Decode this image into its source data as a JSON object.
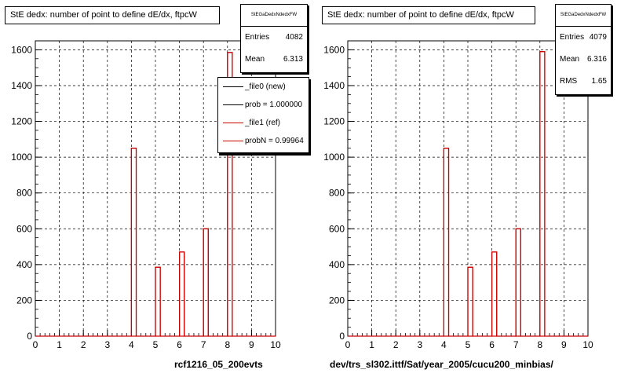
{
  "chart_data": [
    {
      "type": "bar",
      "title": "StE dedx: number of point to define dE/dx, ftpcW",
      "xlim": [
        0,
        10
      ],
      "ylim": [
        0,
        1650
      ],
      "x_ticks": [
        0,
        1,
        2,
        3,
        4,
        5,
        6,
        7,
        8,
        9,
        10
      ],
      "y_ticks": [
        0,
        200,
        400,
        600,
        800,
        1000,
        1200,
        1400,
        1600
      ],
      "bars": [
        {
          "x_low": 4.0,
          "x_high": 4.2,
          "value": 1050
        },
        {
          "x_low": 5.0,
          "x_high": 5.2,
          "value": 385
        },
        {
          "x_low": 6.0,
          "x_high": 6.2,
          "value": 470
        },
        {
          "x_low": 7.0,
          "x_high": 7.2,
          "value": 600
        },
        {
          "x_low": 8.0,
          "x_high": 8.2,
          "value": 1585
        }
      ],
      "series": [
        {
          "name": "_file0 (new)",
          "color": "#000000"
        },
        {
          "name": "_file1 (ref)",
          "color": "#cc0000"
        }
      ],
      "grid": true,
      "stats": {
        "name": "StEGaDedxNdedxFW",
        "entries": "4082",
        "mean": "6.313"
      },
      "legend_entries": [
        "_file0 (new)",
        "prob = 1.000000",
        "_file1 (ref)",
        "probN = 0.99964"
      ],
      "legend_position": "top-right",
      "subtitle": "rcf1216_05_200evts"
    },
    {
      "type": "bar",
      "title": "StE dedx: number of point to define dE/dx, ftpcW",
      "xlim": [
        0,
        10
      ],
      "ylim": [
        0,
        1650
      ],
      "x_ticks": [
        0,
        1,
        2,
        3,
        4,
        5,
        6,
        7,
        8,
        9,
        10
      ],
      "y_ticks": [
        0,
        200,
        400,
        600,
        800,
        1000,
        1200,
        1400,
        1600
      ],
      "bars": [
        {
          "x_low": 4.0,
          "x_high": 4.2,
          "value": 1050
        },
        {
          "x_low": 5.0,
          "x_high": 5.2,
          "value": 385
        },
        {
          "x_low": 6.0,
          "x_high": 6.2,
          "value": 470
        },
        {
          "x_low": 7.0,
          "x_high": 7.2,
          "value": 600
        },
        {
          "x_low": 8.0,
          "x_high": 8.2,
          "value": 1590
        }
      ],
      "series": [
        {
          "color": "#cc0000"
        }
      ],
      "grid": true,
      "stats": {
        "name": "StEGaDedxNdedxFW",
        "entries": "4079",
        "mean": "6.316",
        "rms": "1.65"
      },
      "subtitle": "dev/trs_sl302.ittf/Sat/year_2005/cucu200_minbias/"
    }
  ],
  "labels": {
    "entries": "Entries",
    "mean": "Mean",
    "rms": "RMS"
  },
  "colors": {
    "hist": "#cc0000",
    "frame": "#000000",
    "grid": "#000000"
  }
}
